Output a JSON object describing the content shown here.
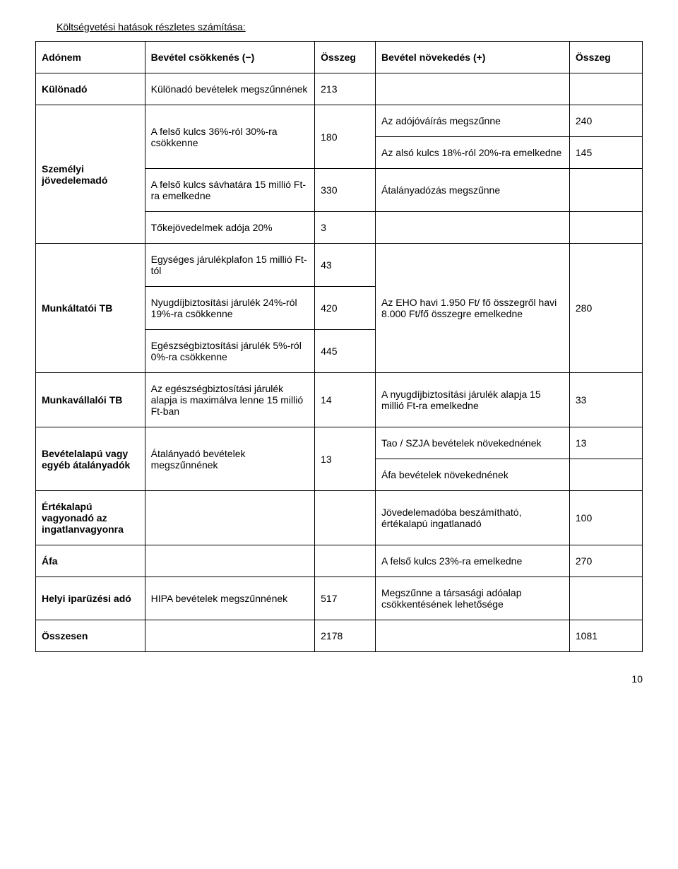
{
  "title": "Költségvetési hatások részletes számítása:",
  "headers": {
    "h0": "Adónem",
    "h1": "Bevétel csökkenés (−)",
    "h2": "Összeg",
    "h3": "Bevétel növekedés (+)",
    "h4": "Összeg"
  },
  "cells": {
    "kulonado_label": "Különadó",
    "kulonado_desc": "Különadó bevételek megszűnnének",
    "kulonado_val": "213",
    "szja_label": "Személyi jövedelemadó",
    "szja_r1_desc": "A felső kulcs 36%-ról 30%-ra csökkenne",
    "szja_r1_val": "180",
    "szja_r1_inc1": "Az adójóváírás megszűnne",
    "szja_r1_inc1_val": "240",
    "szja_r1_inc2": "Az alsó kulcs 18%-ról 20%-ra emelkedne",
    "szja_r1_inc2_val": "145",
    "szja_r2_desc": "A felső kulcs sávhatára 15 millió Ft-ra emelkedne",
    "szja_r2_val": "330",
    "szja_r2_inc": "Átalányadózás megszűnne",
    "szja_r3_desc": "Tőkejövedelmek adója 20%",
    "szja_r3_val": "3",
    "munk_tb_label": "Munkáltatói TB",
    "munk_tb_r1_desc": "Egységes járulékplafon 15 millió Ft-tól",
    "munk_tb_r1_val": "43",
    "munk_tb_r2_desc": "Nyugdíjbiztosítási járulék 24%-ról 19%-ra csökkenne",
    "munk_tb_r2_val": "420",
    "munk_tb_inc": "Az EHO havi 1.950 Ft/ fő összegről havi 8.000 Ft/fő összegre emelkedne",
    "munk_tb_inc_val": "280",
    "munk_tb_r3_desc": "Egészségbiztosítási járulék 5%-ról 0%-ra csökkenne",
    "munk_tb_r3_val": "445",
    "munkv_tb_label": "Munkavállalói TB",
    "munkv_tb_desc": "Az egészségbiztosítási járulék alapja is maximálva lenne 15 millió Ft-ban",
    "munkv_tb_val": "14",
    "munkv_tb_inc": "A nyugdíjbiztosítási járulék alapja 15 millió Ft-ra emelkedne",
    "munkv_tb_inc_val": "33",
    "bev_label": "Bevételalapú vagy egyéb átalányadók",
    "bev_desc": "Átalányadó bevételek megszűnnének",
    "bev_val": "13",
    "bev_inc1": "Tao / SZJA bevételek növekednének",
    "bev_inc1_val": "13",
    "bev_inc2": "Áfa bevételek növekednének",
    "ert_label": "Értékalapú vagyonadó az ingatlanvagyonra",
    "ert_inc": "Jövedelemadóba beszámítható, értékalapú ingatlanadó",
    "ert_inc_val": "100",
    "afa_label": "Áfa",
    "afa_inc": "A felső kulcs 23%-ra emelkedne",
    "afa_inc_val": "270",
    "hipa_label": "Helyi iparűzési adó",
    "hipa_desc": "HIPA bevételek megszűnnének",
    "hipa_val": "517",
    "hipa_inc": "Megszűnne a társasági adóalap csökkentésének lehetősége",
    "ossz_label": "Összesen",
    "ossz_val1": "2178",
    "ossz_val2": "1081"
  },
  "page_number": "10"
}
